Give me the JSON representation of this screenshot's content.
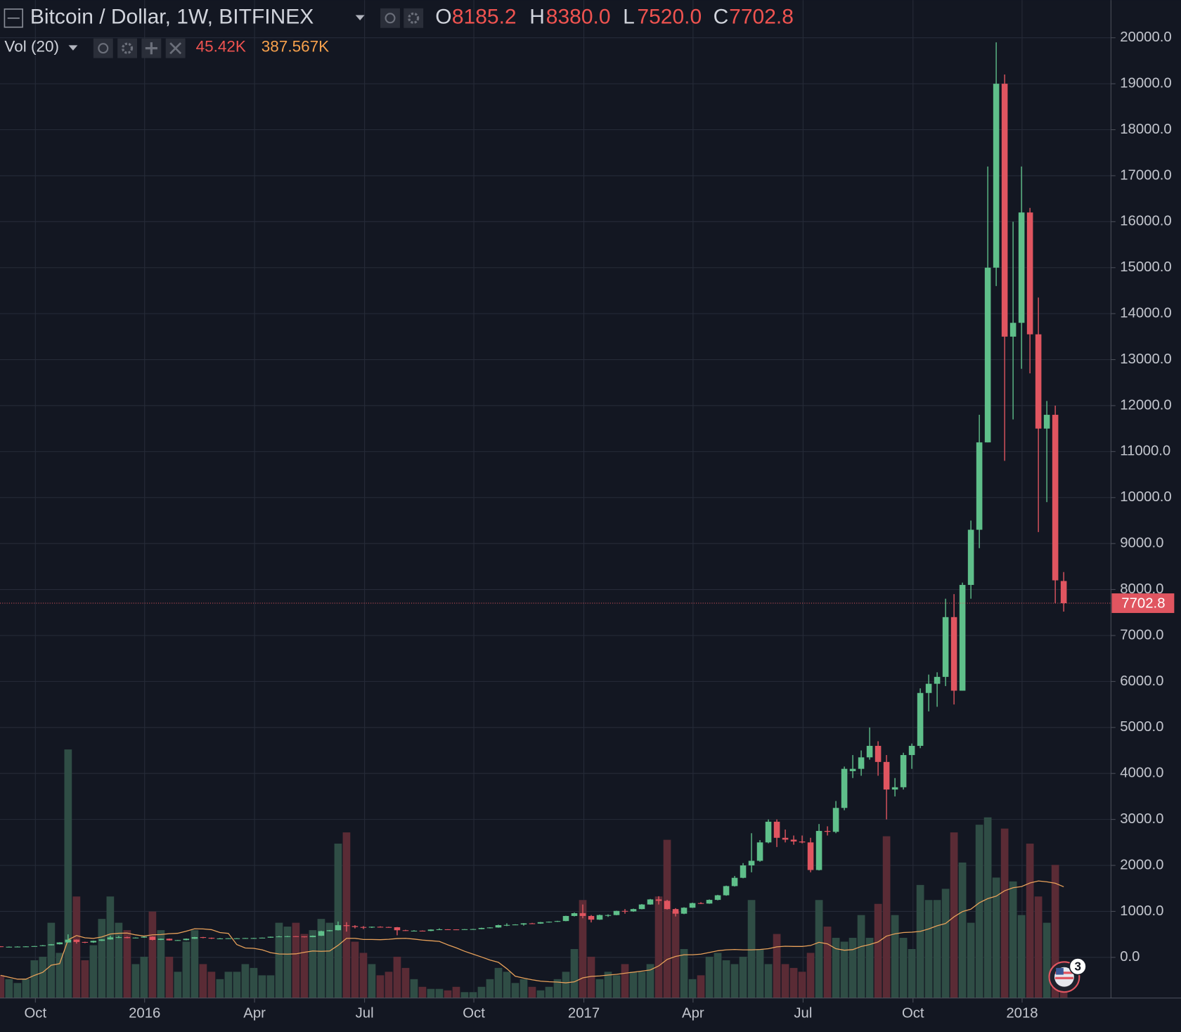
{
  "header": {
    "title": "Bitcoin / Dollar, 1W, BITFINEX",
    "ohlc": [
      {
        "key": "O",
        "value": "8185.2"
      },
      {
        "key": "H",
        "value": "8380.0"
      },
      {
        "key": "L",
        "value": "7520.0"
      },
      {
        "key": "C",
        "value": "7702.8"
      }
    ],
    "vol_label": "Vol (20)",
    "vol_values": [
      "45.42K",
      "387.567K"
    ]
  },
  "badge": "3",
  "chart_data": {
    "type": "candlestick",
    "xlim": [
      -0.07,
      131.6
    ],
    "xticks": [
      {
        "value": 4.12,
        "label": "Oct"
      },
      {
        "value": 17.07,
        "label": "2016"
      },
      {
        "value": 30.1,
        "label": "Apr"
      },
      {
        "value": 43.14,
        "label": "Jul"
      },
      {
        "value": 56.09,
        "label": "Oct"
      },
      {
        "value": 69.13,
        "label": "2017"
      },
      {
        "value": 82.07,
        "label": "Apr"
      },
      {
        "value": 95.11,
        "label": "Jul"
      },
      {
        "value": 108.14,
        "label": "Oct"
      },
      {
        "value": 121.07,
        "label": "2018"
      }
    ],
    "ylim": [
      -885,
      20820
    ],
    "yticks": [
      {
        "value": 0,
        "label": "0.0"
      },
      {
        "value": 1000,
        "label": "1000.0"
      },
      {
        "value": 2000,
        "label": "2000.0"
      },
      {
        "value": 3000,
        "label": "3000.0"
      },
      {
        "value": 4000,
        "label": "4000.0"
      },
      {
        "value": 5000,
        "label": "5000.0"
      },
      {
        "value": 6000,
        "label": "6000.0"
      },
      {
        "value": 7000,
        "label": "7000.0"
      },
      {
        "value": 8000,
        "label": "8000.0"
      },
      {
        "value": 9000,
        "label": "9000.0"
      },
      {
        "value": 10000,
        "label": "10000.0"
      },
      {
        "value": 11000,
        "label": "11000.0"
      },
      {
        "value": 12000,
        "label": "12000.0"
      },
      {
        "value": 13000,
        "label": "13000.0"
      },
      {
        "value": 14000,
        "label": "14000.0"
      },
      {
        "value": 15000,
        "label": "15000.0"
      },
      {
        "value": 16000,
        "label": "16000.0"
      },
      {
        "value": 17000,
        "label": "17000.0"
      },
      {
        "value": 18000,
        "label": "18000.0"
      },
      {
        "value": 19000,
        "label": "19000.0"
      },
      {
        "value": 20000,
        "label": "20000.0"
      }
    ],
    "vlim": [
      0,
      3380
    ],
    "grid": true,
    "up_color": "#5fbf8a",
    "down_color": "#e05560",
    "volume_up_color": "#2f4d45",
    "volume_down_color": "#5a2b35",
    "ma_color": "#e8a15a",
    "ma_period": 20,
    "open": [
      240,
      231,
      231,
      234,
      238,
      245,
      262,
      285,
      325,
      385,
      335,
      325,
      360,
      390,
      435,
      440,
      420,
      430,
      450,
      380,
      405,
      370,
      375,
      405,
      440,
      425,
      410,
      412,
      415,
      415,
      420,
      420,
      428,
      448,
      455,
      460,
      455,
      440,
      470,
      570,
      590,
      700,
      680,
      660,
      650,
      665,
      660,
      655,
      590,
      580,
      580,
      575,
      605,
      610,
      608,
      605,
      612,
      615,
      640,
      650,
      700,
      705,
      715,
      740,
      735,
      765,
      775,
      790,
      900,
      960,
      900,
      820,
      920,
      920,
      1010,
      1000,
      1050,
      1150,
      1260,
      1230,
      1050,
      950,
      1080,
      1180,
      1170,
      1250,
      1350,
      1550,
      1730,
      2000,
      2100,
      2500,
      2950,
      2600,
      2560,
      2520,
      2500,
      1900,
      2750,
      2730,
      3250,
      4050,
      4100,
      4350,
      4600,
      4250,
      3650,
      3700,
      4400,
      4600,
      5750,
      5950,
      6100,
      7400,
      5800,
      8100,
      9300,
      11200,
      15000,
      19000,
      13500,
      13800,
      16200,
      13550,
      11500,
      11800,
      8185.2
    ],
    "high": [
      243,
      236,
      240,
      242,
      248,
      268,
      290,
      330,
      500,
      390,
      340,
      365,
      395,
      470,
      465,
      450,
      435,
      455,
      455,
      410,
      410,
      380,
      410,
      445,
      445,
      430,
      420,
      418,
      420,
      423,
      424,
      430,
      452,
      466,
      465,
      462,
      457,
      475,
      580,
      595,
      780,
      765,
      700,
      680,
      670,
      675,
      665,
      660,
      600,
      590,
      585,
      610,
      630,
      612,
      610,
      615,
      620,
      645,
      655,
      710,
      740,
      720,
      745,
      750,
      770,
      780,
      795,
      905,
      975,
      1150,
      920,
      930,
      935,
      1015,
      1050,
      1060,
      1160,
      1270,
      1330,
      1250,
      1070,
      1090,
      1190,
      1200,
      1260,
      1360,
      1560,
      1770,
      2050,
      2700,
      2550,
      3000,
      3000,
      2780,
      2650,
      2650,
      2600,
      2900,
      2850,
      3400,
      4150,
      4400,
      4500,
      5000,
      4700,
      4400,
      3900,
      4450,
      4650,
      5850,
      6150,
      6200,
      7800,
      7900,
      8150,
      9500,
      11800,
      17200,
      19900,
      19200,
      16000,
      17200,
      16300,
      14350,
      12100,
      12000,
      8380
    ],
    "low": [
      225,
      226,
      228,
      232,
      235,
      243,
      260,
      280,
      320,
      300,
      310,
      315,
      355,
      385,
      420,
      415,
      415,
      425,
      370,
      375,
      365,
      365,
      370,
      400,
      415,
      400,
      405,
      408,
      410,
      412,
      415,
      418,
      425,
      445,
      440,
      450,
      435,
      438,
      465,
      565,
      585,
      560,
      630,
      615,
      640,
      650,
      645,
      480,
      575,
      570,
      565,
      570,
      600,
      600,
      595,
      600,
      608,
      612,
      630,
      645,
      680,
      700,
      690,
      725,
      730,
      755,
      770,
      785,
      890,
      850,
      760,
      815,
      880,
      915,
      950,
      990,
      1045,
      1145,
      1150,
      1040,
      890,
      940,
      1075,
      1160,
      1165,
      1240,
      1340,
      1540,
      1720,
      1850,
      2080,
      2480,
      2400,
      2500,
      2450,
      2480,
      1850,
      1890,
      2650,
      2700,
      3200,
      3900,
      3950,
      4300,
      3950,
      3000,
      3500,
      3650,
      4100,
      4550,
      5350,
      5450,
      5900,
      5500,
      5800,
      7800,
      8900,
      11200,
      14600,
      10800,
      11700,
      12800,
      12700,
      9250,
      9900,
      7700,
      7520
    ],
    "close": [
      231,
      231,
      234,
      238,
      245,
      262,
      285,
      325,
      385,
      335,
      325,
      360,
      390,
      435,
      440,
      420,
      430,
      450,
      380,
      405,
      370,
      375,
      405,
      440,
      425,
      410,
      412,
      415,
      415,
      420,
      420,
      428,
      448,
      455,
      460,
      455,
      440,
      470,
      570,
      590,
      700,
      680,
      660,
      650,
      665,
      660,
      655,
      590,
      580,
      580,
      575,
      605,
      610,
      608,
      605,
      612,
      615,
      640,
      650,
      700,
      705,
      715,
      740,
      735,
      765,
      775,
      790,
      900,
      960,
      900,
      820,
      920,
      920,
      1010,
      1000,
      1050,
      1150,
      1260,
      1230,
      1050,
      950,
      1080,
      1180,
      1170,
      1250,
      1350,
      1550,
      1730,
      2000,
      2100,
      2500,
      2950,
      2600,
      2560,
      2520,
      2500,
      1900,
      2750,
      2730,
      3250,
      4100,
      4100,
      4350,
      4600,
      4250,
      3650,
      3700,
      4400,
      4600,
      5750,
      5950,
      6100,
      7400,
      5800,
      8100,
      9300,
      11200,
      15000,
      19000,
      13500,
      13800,
      16200,
      13550,
      11500,
      11800,
      8200,
      7702.8
    ],
    "volume": [
      77,
      64,
      51,
      64,
      128,
      140,
      255,
      153,
      842,
      344,
      128,
      179,
      268,
      344,
      255,
      230,
      115,
      140,
      293,
      230,
      140,
      89,
      191,
      230,
      115,
      89,
      64,
      89,
      89,
      115,
      102,
      77,
      77,
      255,
      242,
      255,
      217,
      230,
      268,
      255,
      523,
      561,
      191,
      153,
      115,
      77,
      89,
      140,
      102,
      64,
      38,
      31,
      31,
      26,
      38,
      20,
      20,
      38,
      64,
      102,
      89,
      51,
      64,
      38,
      26,
      38,
      64,
      89,
      166,
      332,
      140,
      64,
      89,
      77,
      115,
      89,
      89,
      115,
      344,
      536,
      293,
      166,
      64,
      77,
      140,
      153,
      128,
      115,
      140,
      332,
      166,
      115,
      217,
      115,
      102,
      89,
      153,
      332,
      242,
      204,
      191,
      204,
      281,
      204,
      319,
      548,
      281,
      204,
      166,
      383,
      332,
      332,
      370,
      561,
      459,
      255,
      587,
      612,
      408,
      574,
      395,
      281,
      523,
      344,
      255,
      451,
      45.42
    ]
  }
}
